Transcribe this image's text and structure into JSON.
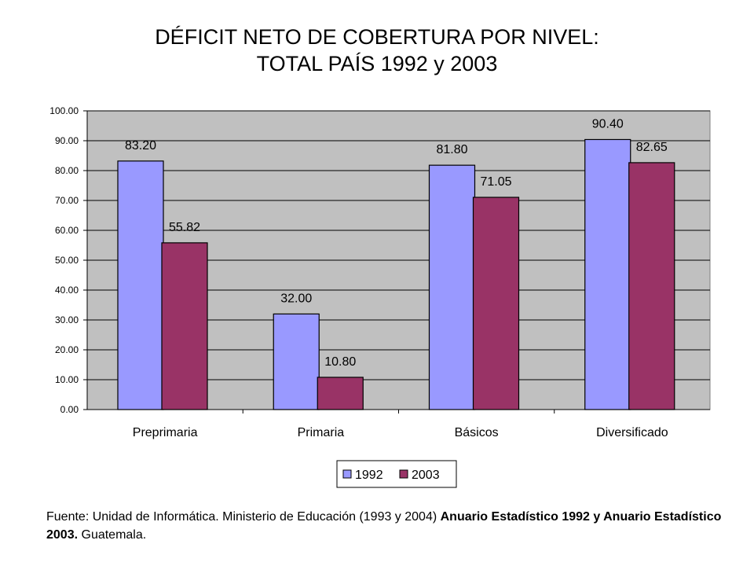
{
  "title_line1": "DÉFICIT NETO DE COBERTURA POR NIVEL:",
  "title_line2": "TOTAL PAÍS 1992 y 2003",
  "source": {
    "part1": "Fuente: Unidad de Informática. Ministerio de Educación (1993 y 2004) ",
    "part2": "Anuario Estadístico 1992 y Anuario Estadístico 2003.",
    "part3": " Guatemala."
  },
  "colors": {
    "plot_bg": "#c0c0c0",
    "series_1992": "#9999ff",
    "series_2003": "#993366"
  },
  "chart_data": {
    "type": "bar",
    "categories": [
      "Preprimaria",
      "Primaria",
      "Básicos",
      "Diversificado"
    ],
    "series": [
      {
        "name": "1992",
        "values": [
          83.2,
          32.0,
          81.8,
          90.4
        ],
        "labels": [
          "83.20",
          "32.00",
          "81.80",
          "90.40"
        ]
      },
      {
        "name": "2003",
        "values": [
          55.82,
          10.8,
          71.05,
          82.65
        ],
        "labels": [
          "55.82",
          "10.80",
          "71.05",
          "82.65"
        ]
      }
    ],
    "ylim": [
      0,
      100
    ],
    "yticks": [
      "0.00",
      "10.00",
      "20.00",
      "30.00",
      "40.00",
      "50.00",
      "60.00",
      "70.00",
      "80.00",
      "90.00",
      "100.00"
    ],
    "grid": true,
    "legend": "bottom-center"
  }
}
